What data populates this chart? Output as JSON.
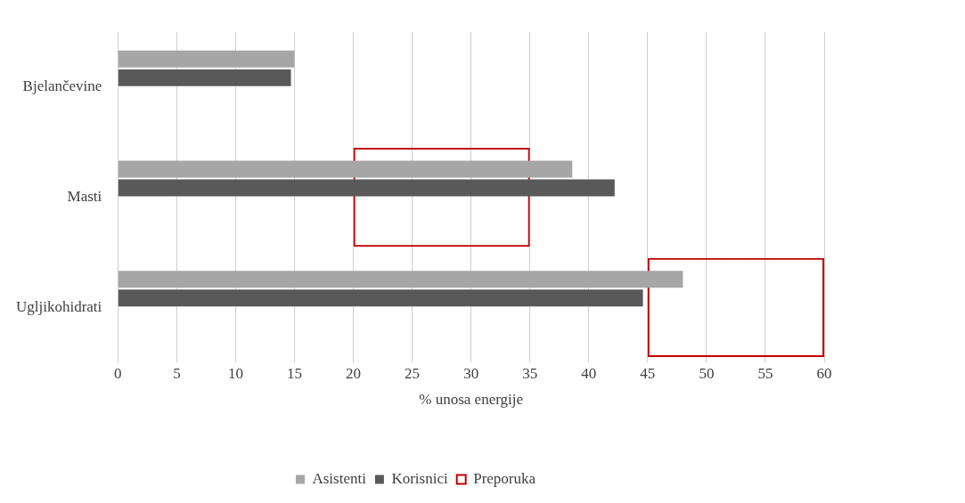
{
  "chart_data": {
    "type": "bar",
    "orientation": "horizontal",
    "categories": [
      "Bjelančevine",
      "Masti",
      "Ugljikohidrati"
    ],
    "series": [
      {
        "name": "Asistenti",
        "color": "#a6a6a6",
        "values": [
          15.0,
          38.6,
          48.0
        ]
      },
      {
        "name": "Korisnici",
        "color": "#595959",
        "values": [
          14.7,
          42.2,
          44.6
        ]
      },
      {
        "name": "Preporuka",
        "color": "#c00000",
        "base": [
          null,
          20,
          45
        ],
        "values": [
          null,
          15,
          15
        ]
      }
    ],
    "xlim": [
      0,
      60
    ],
    "xticks": [
      0,
      5,
      10,
      15,
      20,
      25,
      30,
      35,
      40,
      45,
      50,
      55,
      60
    ],
    "xlabel": "% unosa energije",
    "grid": "x",
    "legend": "bottom"
  }
}
